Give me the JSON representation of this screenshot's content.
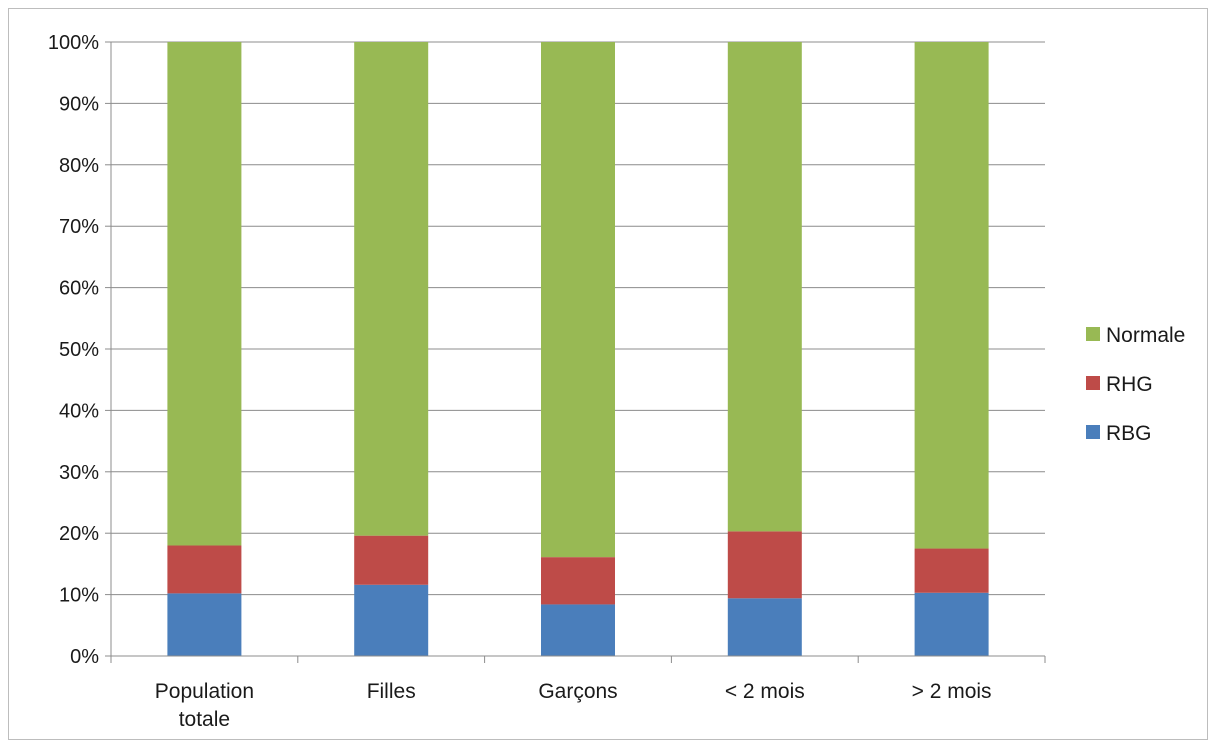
{
  "chart_data": {
    "type": "bar",
    "stacked": true,
    "percent_stacked": true,
    "categories": [
      "Population totale",
      "Filles",
      "Garçons",
      "< 2 mois",
      "> 2 mois"
    ],
    "series": [
      {
        "name": "RBG",
        "color": "#4a7ebb",
        "values": [
          10.2,
          11.6,
          8.4,
          9.4,
          10.3
        ]
      },
      {
        "name": "RHG",
        "color": "#be4b48",
        "values": [
          7.8,
          8.0,
          7.7,
          10.9,
          7.2
        ]
      },
      {
        "name": "Normale",
        "color": "#98b954",
        "values": [
          82.0,
          80.4,
          83.9,
          79.7,
          82.5
        ]
      }
    ],
    "y_ticks": [
      "0%",
      "10%",
      "20%",
      "30%",
      "40%",
      "50%",
      "60%",
      "70%",
      "80%",
      "90%",
      "100%"
    ],
    "ylim": [
      0,
      100
    ],
    "grid": true,
    "legend_position": "right",
    "legend_order": [
      "Normale",
      "RHG",
      "RBG"
    ],
    "title": "",
    "xlabel": "",
    "ylabel": ""
  }
}
